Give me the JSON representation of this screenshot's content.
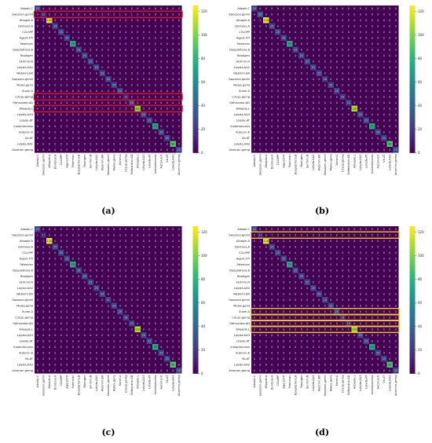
{
  "figure": {
    "panel_labels": [
      "(a)",
      "(b)",
      "(c)",
      "(d)"
    ]
  },
  "colormap": [
    "#440154",
    "#482878",
    "#3e4a89",
    "#31688e",
    "#26828e",
    "#1f9e89",
    "#35b779",
    "#6ece58",
    "#b5de2b",
    "#fde725"
  ],
  "highlight_colors": {
    "panel_a": "#e8101e",
    "panel_d": "#f2c11b"
  },
  "chart_data": [
    {
      "type": "heatmap",
      "panel": "(a)",
      "categories": [
        "Adoaki.C",
        "Swozzon.gemil",
        "Afoaple.A",
        "Dontouo.A",
        "C2LOPP",
        "Agent.FYI",
        "Fatemian",
        "Doeplathora.B",
        "Rbotigen",
        "Skrimm.N",
        "Lolyda.AA2",
        "Webmm.BX",
        "Swozzon.gemil",
        "Malex.gemj",
        "Xuner.A",
        "C2Lop.gemg",
        "Obfuscator.AD",
        "Alloaple.L",
        "Lolyda.AA3",
        "Lolyda.AT",
        "Instantaccess",
        "Autorun.K",
        "Vb.AT",
        "Lolyda.AA1",
        "Aluerron.gemg"
      ],
      "diagonal": [
        25,
        12,
        120,
        24,
        25,
        25,
        75,
        25,
        25,
        25,
        25,
        25,
        25,
        25,
        25,
        12,
        25,
        105,
        25,
        25,
        75,
        25,
        25,
        90,
        25
      ],
      "off_diagonal": [
        {
          "row": 1,
          "col": 3,
          "value": 2
        },
        {
          "row": 1,
          "col": 5,
          "value": 2
        },
        {
          "row": 1,
          "col": 7,
          "value": 3
        },
        {
          "row": 1,
          "col": 9,
          "value": 4
        },
        {
          "row": 1,
          "col": 10,
          "value": 1
        },
        {
          "row": 1,
          "col": 11,
          "value": 3
        },
        {
          "row": 1,
          "col": 12,
          "value": 3
        },
        {
          "row": 1,
          "col": 14,
          "value": 1
        },
        {
          "row": 1,
          "col": 16,
          "value": 1
        },
        {
          "row": 1,
          "col": 18,
          "value": 1
        },
        {
          "row": 2,
          "col": 1,
          "value": 2
        },
        {
          "row": 15,
          "col": 1,
          "value": 3
        },
        {
          "row": 15,
          "col": 3,
          "value": 2
        },
        {
          "row": 15,
          "col": 5,
          "value": 2
        },
        {
          "row": 15,
          "col": 6,
          "value": 3
        },
        {
          "row": 15,
          "col": 8,
          "value": 4
        },
        {
          "row": 15,
          "col": 9,
          "value": 2
        },
        {
          "row": 15,
          "col": 10,
          "value": 2
        },
        {
          "row": 15,
          "col": 12,
          "value": 2
        },
        {
          "row": 15,
          "col": 13,
          "value": 2
        },
        {
          "row": 15,
          "col": 17,
          "value": 1
        },
        {
          "row": 17,
          "col": 1,
          "value": 3
        },
        {
          "row": 17,
          "col": 3,
          "value": 4
        },
        {
          "row": 17,
          "col": 4,
          "value": 1
        },
        {
          "row": 17,
          "col": 6,
          "value": 4
        },
        {
          "row": 17,
          "col": 8,
          "value": 2
        },
        {
          "row": 17,
          "col": 10,
          "value": 2
        },
        {
          "row": 17,
          "col": 11,
          "value": 1
        },
        {
          "row": 17,
          "col": 14,
          "value": 2
        },
        {
          "row": 17,
          "col": 15,
          "value": 3
        }
      ],
      "highlight_rows": [
        1,
        15,
        17
      ],
      "colorbar": {
        "ticks": [
          0,
          20,
          40,
          60,
          80,
          100,
          120
        ],
        "vmin": 0,
        "vmax": 125
      }
    },
    {
      "type": "heatmap",
      "panel": "(b)",
      "categories": [
        "Adoaki.C",
        "Swozzon.gemil",
        "Afoaple.A",
        "Dontouo.A",
        "C2LOPP",
        "Agent.FYI",
        "Fatemian",
        "Doeplathora.B",
        "Rbotigen",
        "Skrimm.N",
        "Lolyda.AA2",
        "Webmm.BX",
        "Swozzon.gemil",
        "Malex.gemj",
        "Xuner.A",
        "C2Lop.gemg",
        "Obfuscator.AD",
        "Alloaple.L",
        "Lolyda.AA3",
        "Lolyda.AT",
        "Instantaccess",
        "Autorun.K",
        "Vb.AT",
        "Lolyda.AA2",
        "Aluerron.gemg"
      ],
      "diagonal": [
        25,
        32,
        120,
        25,
        25,
        25,
        75,
        25,
        25,
        25,
        25,
        25,
        20,
        25,
        25,
        20,
        22,
        110,
        25,
        25,
        75,
        25,
        25,
        90,
        25
      ],
      "off_diagonal": [
        {
          "row": 2,
          "col": 1,
          "value": 1
        },
        {
          "row": 12,
          "col": 1,
          "value": 1
        },
        {
          "row": 15,
          "col": 1,
          "value": 1
        },
        {
          "row": 16,
          "col": 1,
          "value": 1
        },
        {
          "row": 17,
          "col": 1,
          "value": 1
        }
      ],
      "highlight_rows": [],
      "colorbar": {
        "ticks": [
          0,
          20,
          40,
          60,
          80,
          100,
          120
        ],
        "vmin": 0,
        "vmax": 125
      }
    },
    {
      "type": "heatmap",
      "panel": "(c)",
      "categories": [
        "Adoaki.C",
        "Swozzon.gemil",
        "Afoaple.A",
        "Dontouo.A",
        "C2LOPP",
        "Agent.FYI",
        "Fatemian",
        "Doeplathora.B",
        "Rbotigen",
        "Skrimm.N",
        "Lolyda.AA2",
        "Webmm.BX",
        "Swozzon.gemil",
        "Malex.gemj",
        "Xuner.A",
        "C2Lop.gemg",
        "Obfuscator.AD",
        "Alloaple.L",
        "Lolyda.AA3",
        "Lolyda.AT",
        "Instantaccess",
        "Autorun.K",
        "Vb.AT",
        "Lolyda.AA2",
        "Aluerron.gemg"
      ],
      "diagonal": [
        25,
        11,
        120,
        25,
        25,
        25,
        75,
        25,
        25,
        25,
        25,
        25,
        21,
        25,
        25,
        24,
        23,
        110,
        25,
        25,
        75,
        25,
        25,
        90,
        25
      ],
      "off_diagonal": [
        {
          "row": 1,
          "col": 0,
          "value": 1
        },
        {
          "row": 2,
          "col": 1,
          "value": 1
        },
        {
          "row": 12,
          "col": 1,
          "value": 1
        }
      ],
      "highlight_rows": [],
      "colorbar": {
        "ticks": [
          0,
          20,
          40,
          60,
          80,
          100,
          120
        ],
        "vmin": 0,
        "vmax": 125
      }
    },
    {
      "type": "heatmap",
      "panel": "(d)",
      "categories": [
        "Adoaki.C",
        "Swozzon.gemil",
        "Afoaple.A",
        "Dontouo.A",
        "C2LOPP",
        "Agent.FYI",
        "Fatemian",
        "Doeplathora.B",
        "Rbotigen",
        "Skrimm.N",
        "Lolyda.AA2",
        "Webmm.BX",
        "Swozzon.gemil",
        "Malex.gemj",
        "Xuner.A",
        "C2Lop.gemg",
        "Obfuscator.AD",
        "Alloaple.L",
        "Lolyda.AA3",
        "Lolyda.AT",
        "Instantaccess",
        "Autorun.K",
        "Vb.AT",
        "Lolyda.AA2",
        "Aluerron.gemg"
      ],
      "diagonal": [
        25,
        11,
        120,
        25,
        25,
        25,
        75,
        25,
        25,
        25,
        25,
        25,
        24,
        25,
        25,
        14,
        15,
        110,
        25,
        25,
        75,
        25,
        25,
        90,
        25
      ],
      "off_diagonal": [
        {
          "row": 1,
          "col": 3,
          "value": 1
        },
        {
          "row": 1,
          "col": 11,
          "value": 3
        },
        {
          "row": 1,
          "col": 13,
          "value": 1
        },
        {
          "row": 2,
          "col": 1,
          "value": 1
        },
        {
          "row": 15,
          "col": 12,
          "value": 1
        },
        {
          "row": 15,
          "col": 14,
          "value": 1
        },
        {
          "row": 16,
          "col": 15,
          "value": 1
        },
        {
          "row": 17,
          "col": 16,
          "value": 1
        }
      ],
      "highlight_rows": [
        1,
        14,
        15,
        16,
        17
      ],
      "colorbar": {
        "ticks": [
          0,
          20,
          40,
          60,
          80,
          100,
          120
        ],
        "vmin": 0,
        "vmax": 125
      }
    }
  ]
}
